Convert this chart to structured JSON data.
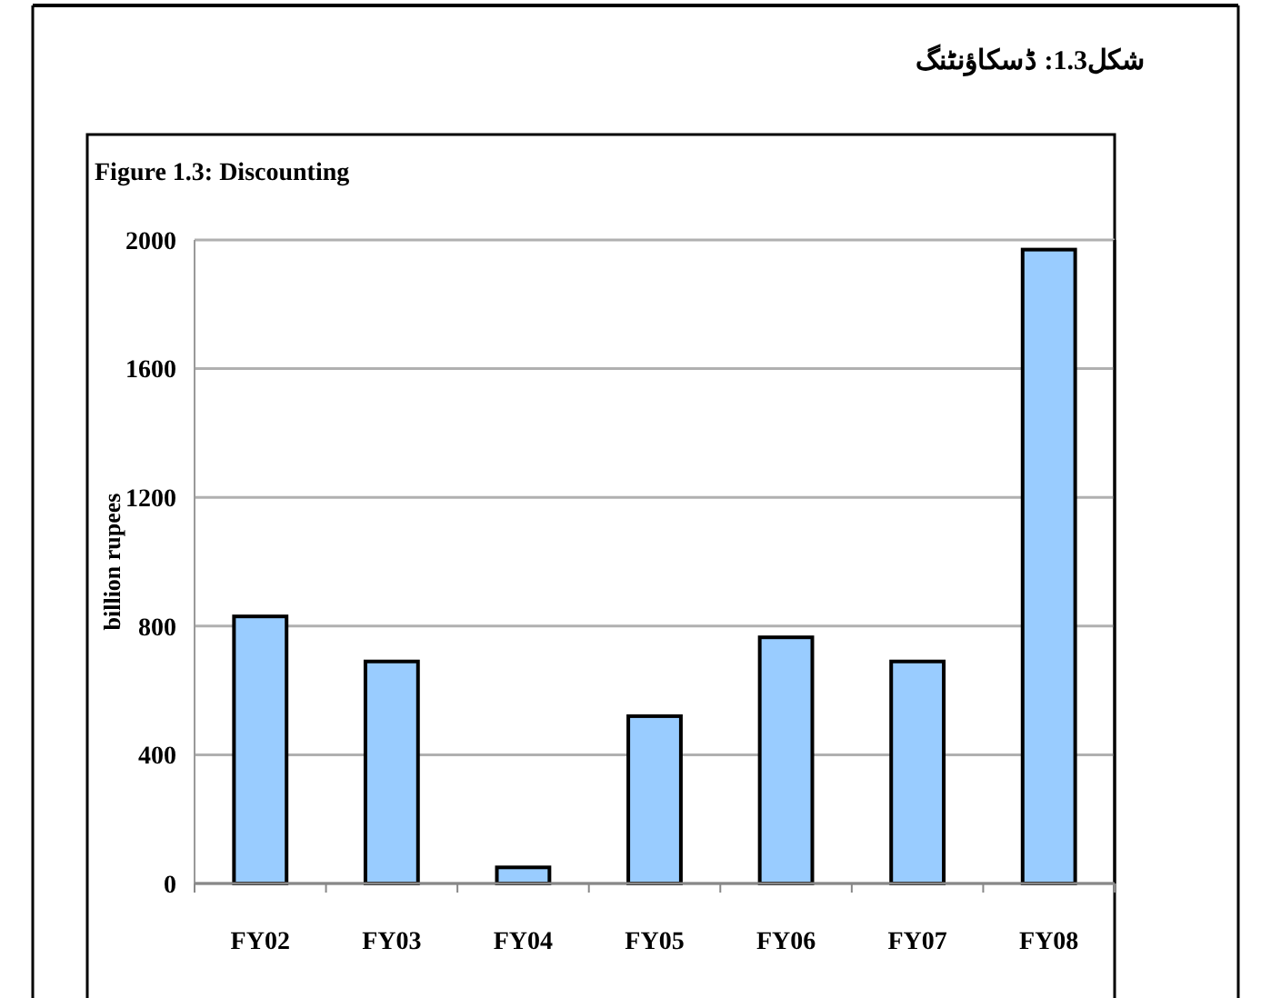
{
  "chart_data": {
    "type": "bar",
    "title": "شکل1.3: ڈسکاؤنٹنگ",
    "subtitle": "Figure 1.3: Discounting",
    "ylabel": "billion rupees",
    "categories": [
      "FY02",
      "FY03",
      "FY04",
      "FY05",
      "FY06",
      "FY07",
      "FY08"
    ],
    "values": [
      830,
      690,
      50,
      520,
      765,
      690,
      1970
    ],
    "color": "#99ccff",
    "ylim": [
      0,
      2000
    ],
    "yticks": [
      0,
      400,
      800,
      1200,
      1600,
      2000
    ],
    "grid": "y"
  }
}
